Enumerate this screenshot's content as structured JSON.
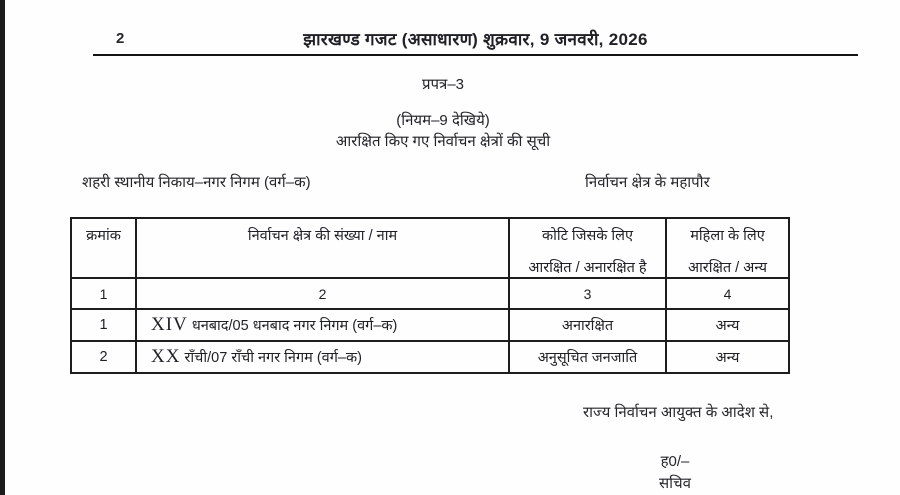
{
  "page": {
    "number": "2",
    "header_title": "झारखण्ड गजट (असाधारण) शुक्रवार, 9 जनवरी, 2026"
  },
  "form": {
    "label": "प्रपत्र–3",
    "rule_ref": "(नियम–9 देखिये)",
    "list_title": "आरक्षित किए गए निर्वाचन क्षेत्रों की सूची",
    "body_type_label": "शहरी स्थानीय निकाय–नगर निगम (वर्ग–क)",
    "constituency_label": "निर्वाचन क्षेत्र के महापौर"
  },
  "table": {
    "headers": {
      "sno": "क्रमांक",
      "constituency": "निर्वाचन क्षेत्र की संख्या / नाम",
      "category_line1": "कोटि जिसके लिए",
      "category_line2": "आरक्षित / अनारक्षित है",
      "women_line1": "महिला के लिए",
      "women_line2": "आरक्षित / अन्य"
    },
    "column_numbers": [
      "1",
      "2",
      "3",
      "4"
    ],
    "rows": [
      {
        "sno": "1",
        "roman": "XIV",
        "name": "धनबाद/05 धनबाद नगर निगम (वर्ग–क)",
        "category": "अनारक्षित",
        "women": "अन्य"
      },
      {
        "sno": "2",
        "roman": "XX",
        "name": "राँची/07 राँची नगर निगम (वर्ग–क)",
        "category": "अनुसूचित जनजाति",
        "women": "अन्य"
      }
    ]
  },
  "footer": {
    "order_text": "राज्य निर्वाचन आयुक्त के आदेश से,",
    "signature": "ह0/–",
    "designation": "सचिव"
  }
}
